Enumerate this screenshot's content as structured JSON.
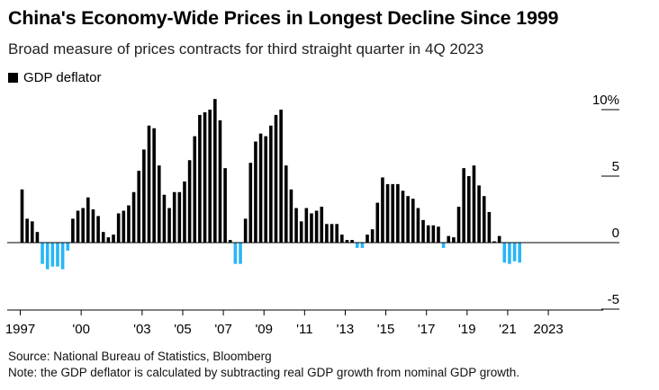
{
  "chart_data": {
    "type": "bar",
    "title": "China's Economy-Wide Prices in Longest Decline Since 1999",
    "subtitle": "Broad measure of prices contracts for third straight quarter in 4Q 2023",
    "legend": [
      {
        "name": "GDP deflator",
        "color": "#000000"
      }
    ],
    "colors": {
      "positive": "#000000",
      "negative": "#29b6f6"
    },
    "ylim": [
      -6,
      10.5
    ],
    "yticks": [
      {
        "value": 10,
        "label": "10%"
      },
      {
        "value": 5,
        "label": "5"
      },
      {
        "value": 0,
        "label": "0"
      },
      {
        "value": -5,
        "label": "-5"
      }
    ],
    "x_start": 1997,
    "x_end": 2024,
    "xticks": [
      {
        "year": 1997,
        "label": "1997"
      },
      {
        "year": 2000,
        "label": "'00"
      },
      {
        "year": 2003,
        "label": "'03"
      },
      {
        "year": 2005,
        "label": "'05"
      },
      {
        "year": 2007,
        "label": "'07"
      },
      {
        "year": 2009,
        "label": "'09"
      },
      {
        "year": 2011,
        "label": "'11"
      },
      {
        "year": 2013,
        "label": "'13"
      },
      {
        "year": 2015,
        "label": "'15"
      },
      {
        "year": 2017,
        "label": "'17"
      },
      {
        "year": 2019,
        "label": "'19"
      },
      {
        "year": 2021,
        "label": "'21"
      },
      {
        "year": 2023,
        "label": "2023"
      }
    ],
    "series": [
      {
        "name": "GDP deflator",
        "values": [
          4.0,
          1.8,
          1.6,
          0.8,
          -1.6,
          -2.0,
          -1.8,
          -1.8,
          -2.0,
          -0.6,
          1.8,
          2.4,
          2.6,
          3.4,
          2.5,
          2.0,
          0.8,
          0.4,
          0.6,
          2.2,
          2.4,
          2.8,
          3.8,
          5.4,
          7.0,
          8.8,
          8.6,
          5.8,
          3.6,
          2.6,
          3.8,
          3.8,
          4.6,
          6.2,
          8.0,
          9.6,
          9.8,
          10.0,
          10.8,
          9.2,
          5.6,
          0.2,
          -1.6,
          -1.6,
          1.8,
          6.0,
          7.6,
          8.2,
          8.0,
          8.8,
          9.6,
          10.0,
          5.8,
          4.0,
          2.6,
          1.6,
          2.6,
          2.2,
          2.4,
          2.7,
          1.4,
          1.4,
          1.4,
          0.6,
          0.2,
          0.2,
          -0.4,
          -0.4,
          0.6,
          1.0,
          3.0,
          4.9,
          4.4,
          4.4,
          4.4,
          3.9,
          3.5,
          3.3,
          2.6,
          1.7,
          1.3,
          1.3,
          1.2,
          -0.4,
          0.5,
          0.4,
          2.7,
          5.6,
          5.0,
          5.8,
          4.3,
          3.5,
          2.3,
          0.1,
          0.5,
          -1.5,
          -1.6,
          -1.4,
          -1.5
        ]
      }
    ],
    "source": "Source: National Bureau of Statistics, Bloomberg",
    "note": "Note: the GDP deflator is calculated by subtracting real GDP growth from nominal GDP growth."
  }
}
